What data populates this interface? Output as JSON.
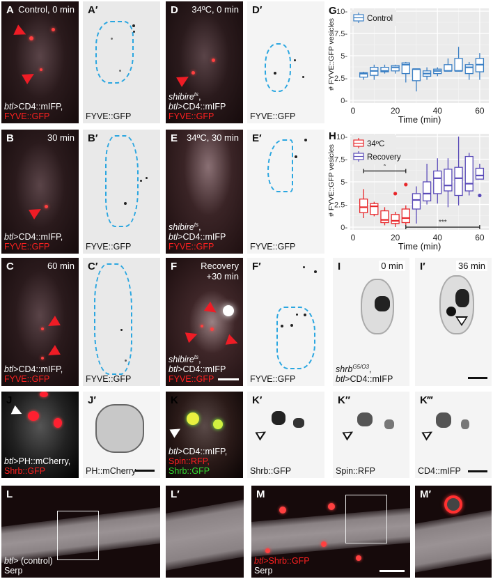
{
  "panels": {
    "A": {
      "label": "A",
      "time": "Control, 0 min",
      "caption_line1_italic": "btl",
      "caption_line1": ">CD4::mIFP,",
      "caption_line2": "FYVE::GFP"
    },
    "A_prime": {
      "label": "A′",
      "caption": "FYVE::GFP"
    },
    "B": {
      "label": "B",
      "time": "30 min",
      "caption_line1_italic": "btl",
      "caption_line1": ">CD4::mIFP,",
      "caption_line2": "FYVE::GFP"
    },
    "B_prime": {
      "label": "B′",
      "caption": "FYVE::GFP"
    },
    "C": {
      "label": "C",
      "time": "60 min",
      "caption_line1_italic": "btl",
      "caption_line1": ">CD4::mIFP,",
      "caption_line2": "FYVE::GFP"
    },
    "C_prime": {
      "label": "C′",
      "caption": "FYVE::GFP"
    },
    "D": {
      "label": "D",
      "time": "34ºC, 0 min",
      "caption_line0_italic": "shibire",
      "caption_line0_sup": "ts",
      "caption_line0_end": ",",
      "caption_line1_italic": "btl",
      "caption_line1": ">CD4::mIFP",
      "caption_line2": "FYVE::GFP"
    },
    "D_prime": {
      "label": "D′",
      "caption": "FYVE::GFP"
    },
    "E": {
      "label": "E",
      "time": "34ºC, 30 min",
      "caption_line0_italic": "shibire",
      "caption_line0_sup": "ts",
      "caption_line0_end": ",",
      "caption_line1_italic": "btl",
      "caption_line1": ">CD4::mIFP",
      "caption_line2": "FYVE::GFP"
    },
    "E_prime": {
      "label": "E′",
      "caption": "FYVE::GFP"
    },
    "F": {
      "label": "F",
      "time_line1": "Recovery",
      "time_line2": "+30 min",
      "caption_line0_italic": "shibire",
      "caption_line0_sup": "ts",
      "caption_line0_end": ",",
      "caption_line1_italic": "btl",
      "caption_line1": ">CD4::mIFP",
      "caption_line2": "FYVE::GFP"
    },
    "F_prime": {
      "label": "F′",
      "caption": "FYVE::GFP"
    },
    "I": {
      "label": "I",
      "time": "0 min",
      "caption_line0_italic": "shrb",
      "caption_line0_sup": "G5/O3",
      "caption_line0_end": ",",
      "caption_line1_italic": "btl",
      "caption_line1": ">CD4::mIFP"
    },
    "I_prime": {
      "label": "I′",
      "time": "36 min"
    },
    "J": {
      "label": "J",
      "caption_line1_italic": "btl",
      "caption_line1": ">PH::mCherry,",
      "caption_line2": "Shrb::GFP"
    },
    "J_prime": {
      "label": "J′",
      "caption": "PH::mCherry"
    },
    "K": {
      "label": "K",
      "caption_line1_italic": "btl",
      "caption_line1": ">CD4::mIFP,",
      "caption_line2": "Spin::RFP,",
      "caption_line3": "Shrb::GFP"
    },
    "K_prime": {
      "label": "K′",
      "caption": "Shrb::GFP"
    },
    "K_dprime": {
      "label": "K″",
      "caption": "Spin::RFP"
    },
    "K_tprime": {
      "label": "K‴",
      "caption": "CD4::mIFP"
    },
    "L": {
      "label": "L",
      "caption_line1_italic": "btl",
      "caption_line1": "> (control)",
      "caption_line2": "Serp"
    },
    "L_prime": {
      "label": "L′"
    },
    "M": {
      "label": "M",
      "caption_line1_italic": "btl",
      "caption_line1": ">Shrb::GFP",
      "caption_line2": "Serp"
    },
    "M_prime": {
      "label": "M′"
    }
  },
  "colors": {
    "control": "#3a7fc4",
    "heat": "#e8262a",
    "recovery": "#5a4bb8",
    "outline": "#2aa6e0",
    "arrow": "#ee1c25"
  },
  "chart_data": [
    {
      "panel": "G",
      "type": "box",
      "title": "",
      "xlabel": "Time (min)",
      "ylabel": "# FYVE::GFP vesicles",
      "ylim": [
        0,
        10
      ],
      "xlim": [
        0,
        63
      ],
      "xticks": [
        0,
        20,
        40,
        60
      ],
      "yticks": [
        "0",
        "2.5",
        "5",
        "7.5",
        "10"
      ],
      "grid": true,
      "legend": {
        "position": "top-left",
        "entries": [
          "Control"
        ]
      },
      "series": [
        {
          "name": "Control",
          "color": "#3a7fc4",
          "x": [
            5,
            10,
            15,
            20,
            25,
            30,
            35,
            40,
            45,
            50,
            55,
            60
          ],
          "q1": [
            2.6,
            2.8,
            3.2,
            3.3,
            3.0,
            2.2,
            2.7,
            3.0,
            3.3,
            3.3,
            3.0,
            3.2
          ],
          "median": [
            3.0,
            3.3,
            3.3,
            3.7,
            4.0,
            3.5,
            3.0,
            3.3,
            3.3,
            3.3,
            3.7,
            4.0
          ],
          "q3": [
            3.1,
            3.7,
            3.7,
            3.9,
            4.2,
            3.5,
            3.3,
            3.5,
            4.0,
            4.7,
            4.0,
            4.7
          ],
          "min": [
            2.3,
            2.3,
            3.0,
            3.0,
            2.0,
            1.0,
            2.3,
            2.7,
            3.3,
            3.3,
            2.3,
            2.3
          ],
          "max": [
            3.2,
            4.0,
            4.0,
            4.0,
            4.3,
            3.5,
            3.7,
            3.7,
            4.7,
            6.0,
            4.3,
            5.3
          ]
        }
      ]
    },
    {
      "panel": "H",
      "type": "box",
      "title": "",
      "xlabel": "Time (min)",
      "ylabel": "# FYVE::GFP vesicles",
      "ylim": [
        0,
        10
      ],
      "xlim": [
        0,
        63
      ],
      "xticks": [
        0,
        20,
        40,
        60
      ],
      "yticks": [
        "0",
        "2.5",
        "5",
        "7.5",
        "10"
      ],
      "grid": true,
      "legend": {
        "position": "top-left",
        "entries": [
          "34ºC",
          "Recovery"
        ]
      },
      "annotations": [
        {
          "text": "*",
          "x_from": 5,
          "x_to": 25,
          "y": 6.2
        },
        {
          "text": "***",
          "x_from": 25,
          "x_to": 60,
          "y": 0
        }
      ],
      "series": [
        {
          "name": "34ºC",
          "color": "#e8262a",
          "x": [
            5,
            10,
            15,
            20,
            25
          ],
          "q1": [
            1.6,
            1.4,
            0.5,
            0.4,
            0.5
          ],
          "median": [
            2.2,
            2.3,
            0.8,
            0.7,
            1.0
          ],
          "q3": [
            3.1,
            2.6,
            1.8,
            1.4,
            2.0
          ],
          "min": [
            1.0,
            1.2,
            0.2,
            0.0,
            0.2
          ],
          "max": [
            4.2,
            2.8,
            2.2,
            1.7,
            2.4
          ],
          "outliers": [
            [
              20,
              3.7
            ],
            [
              25,
              4.7
            ]
          ]
        },
        {
          "name": "Recovery",
          "color": "#5a4bb8",
          "x": [
            30,
            35,
            40,
            45,
            50,
            55,
            60
          ],
          "q1": [
            2.0,
            2.9,
            3.7,
            4.0,
            3.5,
            4.0,
            5.3
          ],
          "median": [
            3.0,
            3.7,
            5.4,
            4.6,
            5.4,
            4.8,
            5.7
          ],
          "q3": [
            3.7,
            5.0,
            6.2,
            6.4,
            6.6,
            7.8,
            6.5
          ],
          "min": [
            0.4,
            2.5,
            2.6,
            2.2,
            2.4,
            3.5,
            5.3
          ],
          "max": [
            4.5,
            7.0,
            7.6,
            7.6,
            10.0,
            8.2,
            7.0
          ],
          "outliers": [
            [
              60,
              3.5
            ]
          ]
        }
      ]
    }
  ]
}
